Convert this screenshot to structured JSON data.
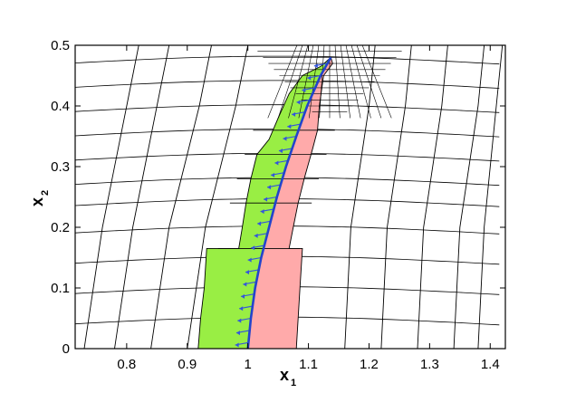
{
  "chart_data": {
    "type": "mesh-plot",
    "title": "",
    "xlabel": "x",
    "xlabel_subscript": "1",
    "ylabel": "x",
    "ylabel_subscript": "2",
    "xlim": [
      0.715,
      1.425
    ],
    "ylim": [
      0,
      0.5
    ],
    "x_ticks": [
      {
        "value": 0.8,
        "label": "0.8"
      },
      {
        "value": 0.9,
        "label": "0.9"
      },
      {
        "value": 1.0,
        "label": "1"
      },
      {
        "value": 1.1,
        "label": "1.1"
      },
      {
        "value": 1.2,
        "label": "1.2"
      },
      {
        "value": 1.3,
        "label": "1.3"
      },
      {
        "value": 1.4,
        "label": "1.4"
      }
    ],
    "y_ticks": [
      {
        "value": 0.0,
        "label": "0"
      },
      {
        "value": 0.1,
        "label": "0.1"
      },
      {
        "value": 0.2,
        "label": "0.2"
      },
      {
        "value": 0.3,
        "label": "0.3"
      },
      {
        "value": 0.4,
        "label": "0.4"
      },
      {
        "value": 0.5,
        "label": "0.5"
      }
    ],
    "grid": false,
    "colors": {
      "left_region": "#99ee44",
      "right_region": "#ffaaaa",
      "front": "#2244cc",
      "vectors": "#3355dd",
      "mesh": "#000000"
    },
    "front_curve": [
      [
        1.0,
        0.0
      ],
      [
        1.005,
        0.05
      ],
      [
        1.012,
        0.1
      ],
      [
        1.022,
        0.15
      ],
      [
        1.035,
        0.2
      ],
      [
        1.048,
        0.25
      ],
      [
        1.063,
        0.3
      ],
      [
        1.08,
        0.35
      ],
      [
        1.098,
        0.4
      ],
      [
        1.12,
        0.45
      ],
      [
        1.137,
        0.48
      ]
    ],
    "left_region_outline": [
      [
        0.918,
        0.0
      ],
      [
        0.922,
        0.05
      ],
      [
        0.928,
        0.1
      ],
      [
        0.932,
        0.165
      ],
      [
        0.985,
        0.165
      ],
      [
        0.99,
        0.195
      ],
      [
        0.997,
        0.24
      ],
      [
        1.005,
        0.28
      ],
      [
        1.015,
        0.32
      ],
      [
        1.035,
        0.345
      ],
      [
        1.05,
        0.38
      ],
      [
        1.068,
        0.42
      ],
      [
        1.09,
        0.45
      ],
      [
        1.12,
        0.465
      ]
    ],
    "right_region_outline": [
      [
        1.08,
        0.0
      ],
      [
        1.083,
        0.05
      ],
      [
        1.086,
        0.1
      ],
      [
        1.09,
        0.165
      ],
      [
        1.068,
        0.165
      ],
      [
        1.075,
        0.2
      ],
      [
        1.083,
        0.24
      ],
      [
        1.093,
        0.28
      ],
      [
        1.107,
        0.33
      ],
      [
        1.115,
        0.36
      ],
      [
        1.118,
        0.4
      ],
      [
        1.125,
        0.45
      ],
      [
        1.14,
        0.47
      ]
    ],
    "mesh": {
      "vertical_lines": [
        [
          [
            0.73,
            0.0
          ],
          [
            0.76,
            0.2
          ],
          [
            0.8,
            0.4
          ],
          [
            0.82,
            0.5
          ]
        ],
        [
          [
            0.78,
            0.0
          ],
          [
            0.81,
            0.2
          ],
          [
            0.85,
            0.4
          ],
          [
            0.87,
            0.5
          ]
        ],
        [
          [
            0.84,
            0.0
          ],
          [
            0.87,
            0.2
          ],
          [
            0.92,
            0.4
          ],
          [
            0.94,
            0.5
          ]
        ],
        [
          [
            0.9,
            0.0
          ],
          [
            0.93,
            0.2
          ],
          [
            0.98,
            0.4
          ],
          [
            1.0,
            0.5
          ]
        ],
        [
          [
            1.16,
            0.0
          ],
          [
            1.17,
            0.2
          ],
          [
            1.2,
            0.4
          ],
          [
            1.21,
            0.5
          ]
        ],
        [
          [
            1.22,
            0.0
          ],
          [
            1.23,
            0.2
          ],
          [
            1.26,
            0.4
          ],
          [
            1.27,
            0.5
          ]
        ],
        [
          [
            1.28,
            0.0
          ],
          [
            1.29,
            0.2
          ],
          [
            1.32,
            0.4
          ],
          [
            1.33,
            0.5
          ]
        ],
        [
          [
            1.34,
            0.0
          ],
          [
            1.35,
            0.2
          ],
          [
            1.38,
            0.4
          ],
          [
            1.39,
            0.5
          ]
        ],
        [
          [
            1.38,
            0.0
          ],
          [
            1.39,
            0.2
          ],
          [
            1.41,
            0.4
          ],
          [
            1.42,
            0.5
          ]
        ]
      ],
      "horizontal_levels": [
        0.04,
        0.09,
        0.14,
        0.19,
        0.235,
        0.27,
        0.31,
        0.35,
        0.39,
        0.43,
        0.47
      ],
      "refined_box": [
        1.02,
        1.2,
        0.38,
        0.5
      ],
      "refined_levels": [
        0.39,
        0.4,
        0.41,
        0.42,
        0.43,
        0.44,
        0.45,
        0.46,
        0.47,
        0.48,
        0.49
      ]
    },
    "vectors": {
      "step": 0.02,
      "length": 0.022
    }
  }
}
